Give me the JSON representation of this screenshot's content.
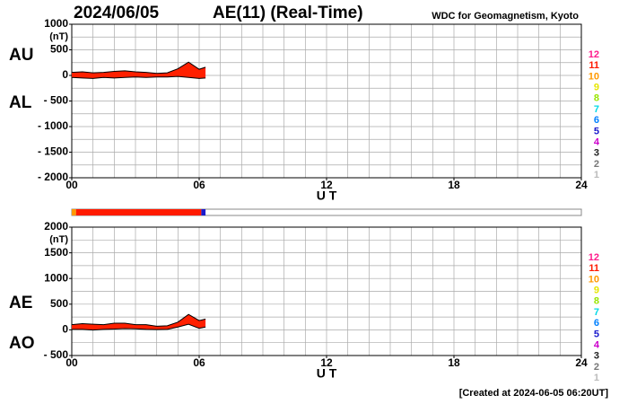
{
  "header": {
    "date": "2024/06/05",
    "title": "AE(11) (Real-Time)",
    "source": "WDC for Geomagnetism, Kyoto"
  },
  "footer": "[Created at 2024-06-05 06:20UT]",
  "fill_color": "#ff2000",
  "station_legend": [
    {
      "stations": 12,
      "color": "#ff1c8c"
    },
    {
      "stations": 11,
      "color": "#ff1a00"
    },
    {
      "stations": 10,
      "color": "#ff9900"
    },
    {
      "stations": 9,
      "color": "#e6e600"
    },
    {
      "stations": 8,
      "color": "#99e600"
    },
    {
      "stations": 7,
      "color": "#00d9e6"
    },
    {
      "stations": 6,
      "color": "#0080ff"
    },
    {
      "stations": 5,
      "color": "#1a1acc"
    },
    {
      "stations": 4,
      "color": "#cc00cc"
    },
    {
      "stations": 3,
      "color": "#222222"
    },
    {
      "stations": 2,
      "color": "#777777"
    },
    {
      "stations": 1,
      "color": "#bbbbbb"
    }
  ],
  "coverage_bar": {
    "xlim": [
      0,
      24
    ],
    "segments": [
      {
        "start": 0,
        "end": 0.2,
        "stations": 10
      },
      {
        "start": 0.2,
        "end": 6.1,
        "stations": 11
      },
      {
        "start": 6.1,
        "end": 6.3,
        "stations": 5
      }
    ]
  },
  "chart_data": [
    {
      "type": "band",
      "xlabel": "U T",
      "y_unit": "(nT)",
      "xlim": [
        0,
        24
      ],
      "ylim": [
        -2000,
        1000
      ],
      "xticks": [
        {
          "value": 0,
          "label": "00"
        },
        {
          "value": 6,
          "label": "06"
        },
        12,
        18,
        24
      ],
      "yticks": [
        1000,
        500,
        0,
        {
          "value": -500,
          "label": "- 500"
        },
        {
          "value": -1000,
          "label": "- 1000"
        },
        {
          "value": -1500,
          "label": "- 1500"
        },
        {
          "value": -2000,
          "label": "- 2000"
        }
      ],
      "grid": true,
      "x": [
        0,
        0.5,
        1,
        1.5,
        2,
        2.5,
        3,
        3.5,
        4,
        4.5,
        5,
        5.5,
        6,
        6.3
      ],
      "series": [
        {
          "name": "AU",
          "values": [
            60,
            70,
            50,
            60,
            80,
            90,
            70,
            60,
            40,
            50,
            130,
            260,
            120,
            160
          ]
        },
        {
          "name": "AL",
          "values": [
            -40,
            -50,
            -60,
            -40,
            -50,
            -40,
            -30,
            -40,
            -30,
            -30,
            -20,
            -40,
            -60,
            -50
          ]
        }
      ]
    },
    {
      "type": "band",
      "xlabel": "U T",
      "y_unit": "(nT)",
      "xlim": [
        0,
        24
      ],
      "ylim": [
        -500,
        2000
      ],
      "xticks": [
        {
          "value": 0,
          "label": "00"
        },
        {
          "value": 6,
          "label": "06"
        },
        12,
        18,
        24
      ],
      "yticks": [
        2000,
        1500,
        1000,
        500,
        0,
        {
          "value": -500,
          "label": "- 500"
        }
      ],
      "grid": true,
      "x": [
        0,
        0.5,
        1,
        1.5,
        2,
        2.5,
        3,
        3.5,
        4,
        4.5,
        5,
        5.5,
        6,
        6.3
      ],
      "series": [
        {
          "name": "AE",
          "values": [
            100,
            120,
            110,
            100,
            130,
            130,
            100,
            100,
            70,
            80,
            150,
            300,
            180,
            210
          ]
        },
        {
          "name": "AO",
          "values": [
            10,
            10,
            -5,
            10,
            15,
            25,
            20,
            10,
            5,
            10,
            55,
            110,
            30,
            55
          ]
        }
      ]
    }
  ]
}
